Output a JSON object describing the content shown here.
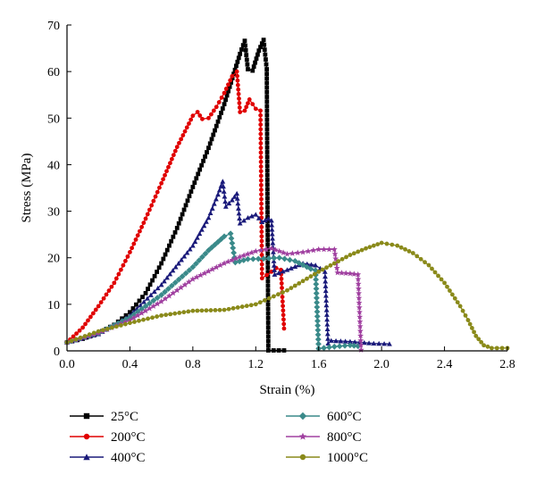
{
  "chart_data": {
    "type": "line",
    "title": "",
    "xlabel": "Strain (%)",
    "ylabel": "Stress (MPa)",
    "xlim": [
      0,
      2.8
    ],
    "ylim": [
      0,
      70
    ],
    "xticks": [
      0,
      0.4,
      0.8,
      1.2,
      1.6,
      2.0,
      2.4,
      2.8
    ],
    "xtick_labels": [
      "0.0",
      "0.4",
      "0.8",
      "1.2",
      "1.6",
      "2.0",
      "2.4",
      "2.8"
    ],
    "yticks": [
      0,
      10,
      20,
      30,
      40,
      50,
      60,
      70
    ],
    "ytick_labels": [
      "0",
      "10",
      "20",
      "30",
      "40",
      "50",
      "60",
      "70"
    ],
    "grid": false,
    "legend_position": "bottom",
    "series": [
      {
        "name": "25°C",
        "color": "#000000",
        "marker": "square",
        "points": [
          [
            0,
            1.8
          ],
          [
            0.1,
            2.6
          ],
          [
            0.2,
            3.8
          ],
          [
            0.3,
            5.6
          ],
          [
            0.4,
            8.3
          ],
          [
            0.5,
            12.4
          ],
          [
            0.6,
            18.8
          ],
          [
            0.7,
            26.4
          ],
          [
            0.8,
            35.2
          ],
          [
            0.9,
            43.6
          ],
          [
            1.0,
            53.0
          ],
          [
            1.06,
            59.5
          ],
          [
            1.1,
            63.8
          ],
          [
            1.13,
            66.6
          ],
          [
            1.15,
            60.5
          ],
          [
            1.18,
            60.2
          ],
          [
            1.22,
            64.5
          ],
          [
            1.25,
            66.8
          ],
          [
            1.27,
            60.5
          ],
          [
            1.28,
            0.1
          ],
          [
            1.38,
            0.1
          ]
        ]
      },
      {
        "name": "200°C",
        "color": "#e00000",
        "marker": "circle",
        "points": [
          [
            0,
            1.8
          ],
          [
            0.1,
            5.0
          ],
          [
            0.2,
            9.6
          ],
          [
            0.3,
            14.6
          ],
          [
            0.4,
            21.2
          ],
          [
            0.5,
            28.4
          ],
          [
            0.6,
            36.0
          ],
          [
            0.7,
            43.8
          ],
          [
            0.8,
            50.5
          ],
          [
            0.83,
            51.3
          ],
          [
            0.86,
            49.8
          ],
          [
            0.9,
            50.0
          ],
          [
            0.95,
            52.4
          ],
          [
            1.0,
            55.4
          ],
          [
            1.05,
            59.0
          ],
          [
            1.08,
            60.0
          ],
          [
            1.1,
            51.3
          ],
          [
            1.13,
            51.6
          ],
          [
            1.16,
            54.0
          ],
          [
            1.2,
            52.0
          ],
          [
            1.23,
            51.6
          ],
          [
            1.24,
            15.6
          ],
          [
            1.3,
            17.0
          ],
          [
            1.33,
            17.8
          ],
          [
            1.36,
            17.4
          ],
          [
            1.38,
            4.8
          ]
        ]
      },
      {
        "name": "400°C",
        "color": "#1a1a7a",
        "marker": "triangle",
        "points": [
          [
            0,
            1.8
          ],
          [
            0.2,
            3.6
          ],
          [
            0.4,
            7.6
          ],
          [
            0.6,
            14.2
          ],
          [
            0.8,
            22.6
          ],
          [
            0.9,
            28.6
          ],
          [
            0.96,
            33.6
          ],
          [
            0.99,
            36.4
          ],
          [
            1.01,
            31.0
          ],
          [
            1.05,
            32.4
          ],
          [
            1.08,
            33.8
          ],
          [
            1.1,
            27.4
          ],
          [
            1.15,
            28.6
          ],
          [
            1.2,
            29.3
          ],
          [
            1.24,
            27.7
          ],
          [
            1.28,
            28.4
          ],
          [
            1.3,
            28.0
          ],
          [
            1.32,
            16.4
          ],
          [
            1.4,
            17.4
          ],
          [
            1.5,
            18.8
          ],
          [
            1.58,
            18.4
          ],
          [
            1.64,
            17.0
          ],
          [
            1.66,
            1.6
          ],
          [
            1.68,
            2.2
          ],
          [
            1.8,
            2.0
          ],
          [
            1.95,
            1.6
          ],
          [
            2.05,
            1.5
          ]
        ]
      },
      {
        "name": "600°C",
        "color": "#3a8a8a",
        "marker": "diamond",
        "points": [
          [
            0,
            1.8
          ],
          [
            0.2,
            3.8
          ],
          [
            0.4,
            7.2
          ],
          [
            0.6,
            12.0
          ],
          [
            0.8,
            18.0
          ],
          [
            0.9,
            21.6
          ],
          [
            1.0,
            24.6
          ],
          [
            1.04,
            25.2
          ],
          [
            1.07,
            19.0
          ],
          [
            1.15,
            19.7
          ],
          [
            1.25,
            19.8
          ],
          [
            1.35,
            20.0
          ],
          [
            1.45,
            19.3
          ],
          [
            1.55,
            17.6
          ],
          [
            1.58,
            17.3
          ],
          [
            1.6,
            0.5
          ],
          [
            1.7,
            0.9
          ],
          [
            1.8,
            1.2
          ],
          [
            1.85,
            1.0
          ]
        ]
      },
      {
        "name": "800°C",
        "color": "#a040a0",
        "marker": "star",
        "points": [
          [
            0,
            1.8
          ],
          [
            0.2,
            3.8
          ],
          [
            0.4,
            6.6
          ],
          [
            0.6,
            10.6
          ],
          [
            0.8,
            15.4
          ],
          [
            1.0,
            18.8
          ],
          [
            1.1,
            20.2
          ],
          [
            1.2,
            21.4
          ],
          [
            1.3,
            22.0
          ],
          [
            1.4,
            20.8
          ],
          [
            1.5,
            21.2
          ],
          [
            1.6,
            21.8
          ],
          [
            1.7,
            21.8
          ],
          [
            1.72,
            16.8
          ],
          [
            1.8,
            16.6
          ],
          [
            1.85,
            16.4
          ],
          [
            1.87,
            0.2
          ]
        ]
      },
      {
        "name": "1000°C",
        "color": "#8a8a1a",
        "marker": "circle",
        "points": [
          [
            0,
            1.8
          ],
          [
            0.2,
            4.2
          ],
          [
            0.4,
            6.0
          ],
          [
            0.6,
            7.6
          ],
          [
            0.8,
            8.6
          ],
          [
            1.0,
            8.8
          ],
          [
            1.2,
            10.0
          ],
          [
            1.4,
            13.0
          ],
          [
            1.6,
            17.0
          ],
          [
            1.8,
            20.6
          ],
          [
            1.9,
            22.0
          ],
          [
            2.0,
            23.2
          ],
          [
            2.1,
            22.6
          ],
          [
            2.2,
            21.0
          ],
          [
            2.3,
            18.4
          ],
          [
            2.4,
            14.6
          ],
          [
            2.5,
            9.6
          ],
          [
            2.55,
            6.6
          ],
          [
            2.6,
            3.2
          ],
          [
            2.65,
            1.2
          ],
          [
            2.7,
            0.6
          ],
          [
            2.8,
            0.6
          ]
        ]
      }
    ]
  }
}
